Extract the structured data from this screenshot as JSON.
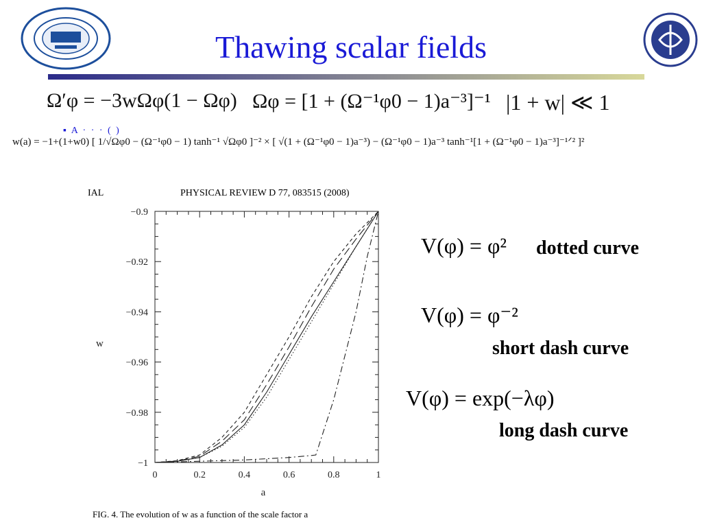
{
  "slide": {
    "title": "Thawing scalar fields",
    "equations": {
      "eq1": "Ω′φ = −3wΩφ(1 − Ωφ)",
      "eq2": "Ωφ = [1 + (Ω⁻¹φ0 − 1)a⁻³]⁻¹",
      "eq3": "|1 + w| ≪ 1",
      "eq_w": "w(a) = −1+(1+w0) [ 1/√Ωφ0 − (Ω⁻¹φ0 − 1) tanh⁻¹ √Ωφ0 ]⁻² × [ √(1 + (Ω⁻¹φ0 − 1)a⁻³) − (Ω⁻¹φ0 − 1)a⁻³ tanh⁻¹[1 + (Ω⁻¹φ0 − 1)a⁻³]⁻¹ᐟ² ]²"
    },
    "partial_text": "▪ A   ·   ·   ·   ( )",
    "paper_header": {
      "left": "IAL",
      "right": "PHYSICAL REVIEW D 77, 083515 (2008)"
    },
    "potentials": [
      {
        "formula": "V(φ) = φ²",
        "label": "dotted curve"
      },
      {
        "formula": "V(φ) = φ⁻²",
        "label": "short dash curve"
      },
      {
        "formula": "V(φ) = exp(−λφ)",
        "label": "long dash curve"
      }
    ],
    "caption": "FIG. 4.    The evolution of  w as a function of the scale factor   a",
    "logos": {
      "left": "university-seal-icon",
      "right": "physics-school-seal-icon"
    },
    "colors": {
      "title": "#1a1ad6",
      "rule_dark": "#2b2b8a",
      "rule_light": "#c9c98a"
    }
  },
  "chart_data": {
    "type": "line",
    "xlabel": "a",
    "ylabel": "w",
    "xlim": [
      0,
      1
    ],
    "ylim": [
      -1,
      -0.9
    ],
    "xticks": [
      "0",
      "0.2",
      "0.4",
      "0.6",
      "0.8",
      "1"
    ],
    "yticks": [
      "−0.9",
      "−0.92",
      "−0.94",
      "−0.96",
      "−0.98",
      "−1"
    ],
    "xtick_values": [
      0,
      0.2,
      0.4,
      0.6,
      0.8,
      1.0
    ],
    "ytick_values": [
      -0.9,
      -0.92,
      -0.94,
      -0.96,
      -0.98,
      -1.0
    ],
    "series": [
      {
        "style": "solid",
        "x": [
          0,
          0.1,
          0.2,
          0.3,
          0.4,
          0.5,
          0.6,
          0.7,
          0.8,
          0.9,
          1.0
        ],
        "y": [
          -1.0,
          -0.9995,
          -0.998,
          -0.993,
          -0.985,
          -0.972,
          -0.957,
          -0.942,
          -0.928,
          -0.914,
          -0.9
        ]
      },
      {
        "style": "dotted",
        "x": [
          0,
          0.1,
          0.2,
          0.3,
          0.4,
          0.5,
          0.6,
          0.7,
          0.8,
          0.9,
          1.0
        ],
        "y": [
          -1.0,
          -0.9995,
          -0.998,
          -0.9935,
          -0.986,
          -0.974,
          -0.959,
          -0.944,
          -0.929,
          -0.914,
          -0.9
        ]
      },
      {
        "style": "short-dash",
        "x": [
          0,
          0.1,
          0.2,
          0.3,
          0.4,
          0.5,
          0.6,
          0.7,
          0.8,
          0.9,
          1.0
        ],
        "y": [
          -1.0,
          -0.9993,
          -0.997,
          -0.99,
          -0.98,
          -0.965,
          -0.95,
          -0.934,
          -0.92,
          -0.909,
          -0.9
        ]
      },
      {
        "style": "long-dash",
        "x": [
          0,
          0.1,
          0.2,
          0.3,
          0.4,
          0.5,
          0.6,
          0.7,
          0.8,
          0.9,
          1.0
        ],
        "y": [
          -1.0,
          -0.9994,
          -0.9975,
          -0.9915,
          -0.983,
          -0.969,
          -0.954,
          -0.938,
          -0.923,
          -0.911,
          -0.9
        ]
      },
      {
        "style": "dash-dot",
        "x": [
          0,
          0.2,
          0.4,
          0.6,
          0.7,
          0.72,
          0.8,
          0.9,
          0.95,
          1.0
        ],
        "y": [
          -1.0,
          -0.9995,
          -0.999,
          -0.998,
          -0.9972,
          -0.997,
          -0.975,
          -0.94,
          -0.918,
          -0.9
        ]
      }
    ]
  }
}
